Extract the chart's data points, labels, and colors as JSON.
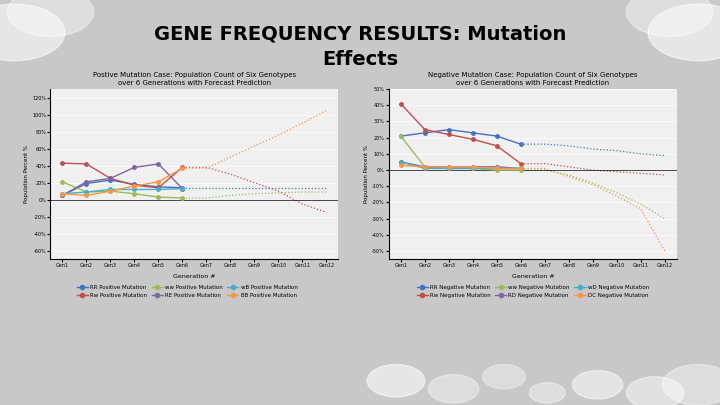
{
  "title": "GENE FREQUENCY RESULTS: Mutation\nEffects",
  "title_fontsize": 14,
  "background_color": "#c8c8c8",
  "title_bg_color": "#ffffff",
  "left_chart": {
    "title": "Postive Mutation Case: Population Count of Six Genotypes\nover 6 Generations with Forecast Prediction",
    "xlabel": "Generation #",
    "ylabel": "Population Percent %",
    "gens_actual": [
      "Gen1",
      "Gen2",
      "Gen3",
      "Gen4",
      "Gen5",
      "Gen6"
    ],
    "gens_forecast": [
      "Gen7",
      "Gen8",
      "Gen9",
      "Gen10",
      "Gen11",
      "Gen12"
    ],
    "ylim": [
      -0.7,
      1.3
    ],
    "yticks": [
      -0.6,
      -0.4,
      -0.2,
      0.0,
      0.2,
      0.4,
      0.6,
      0.8,
      1.0,
      1.2
    ],
    "ytick_labels": [
      "-60%",
      "-40%",
      "-20%",
      "0%",
      "20%",
      "40%",
      "60%",
      "80%",
      "100%",
      "120%"
    ],
    "series": {
      "RR": {
        "color": "#4472C4",
        "actual": [
          0.05,
          0.19,
          0.23,
          0.18,
          0.15,
          0.14
        ],
        "forecast": [
          0.14,
          0.14,
          0.14,
          0.14,
          0.14,
          0.14
        ]
      },
      "Rw": {
        "color": "#C0504D",
        "actual": [
          0.43,
          0.42,
          0.25,
          0.17,
          0.14,
          0.38
        ],
        "forecast": [
          0.38,
          0.3,
          0.2,
          0.1,
          -0.05,
          -0.15
        ]
      },
      "ww": {
        "color": "#9BBB59",
        "actual": [
          0.21,
          0.09,
          0.1,
          0.07,
          0.03,
          0.02
        ],
        "forecast": [
          0.02,
          0.05,
          0.07,
          0.08,
          0.09,
          0.09
        ]
      },
      "RE": {
        "color": "#8064A2",
        "actual": [
          0.05,
          0.21,
          0.25,
          0.38,
          0.42,
          0.13
        ],
        "forecast": [
          null,
          null,
          null,
          null,
          null,
          null
        ]
      },
      "wB": {
        "color": "#4BACC6",
        "actual": [
          0.07,
          0.09,
          0.12,
          0.12,
          0.12,
          0.13
        ],
        "forecast": [
          null,
          null,
          null,
          null,
          null,
          null
        ]
      },
      "BB": {
        "color": "#F79646",
        "actual": [
          0.07,
          0.05,
          0.1,
          0.16,
          0.21,
          0.37
        ],
        "forecast": [
          0.37,
          0.5,
          0.63,
          0.76,
          0.9,
          1.05
        ]
      }
    },
    "legend": [
      {
        "label": "RR Positive Mutation",
        "color": "#4472C4"
      },
      {
        "label": "Rw Positive Mutation",
        "color": "#C0504D"
      },
      {
        "label": "ww Positive Mutation",
        "color": "#9BBB59"
      },
      {
        "label": "RE Positive Mutation",
        "color": "#8064A2"
      },
      {
        "label": "wB Positive Mutation",
        "color": "#4BACC6"
      },
      {
        "label": "BB Positive Mutation",
        "color": "#F79646"
      }
    ]
  },
  "right_chart": {
    "title": "Negative Mutation Case: Population Count of Six Genotypes\nover 6 Generations with Forecast Prediction",
    "xlabel": "Generation #",
    "ylabel": "Population Percent %",
    "gens_actual": [
      "Gen1",
      "Gen2",
      "Gen3",
      "Gen4",
      "Gen5",
      "Gen6"
    ],
    "gens_forecast": [
      "Gen7",
      "Gen8",
      "Gen9",
      "Gen10",
      "Gen11",
      "Gen12"
    ],
    "ylim": [
      -0.55,
      0.45
    ],
    "yticks": [
      -0.5,
      -0.4,
      -0.3,
      -0.2,
      -0.1,
      0.0,
      0.1,
      0.2,
      0.3,
      0.4,
      0.5
    ],
    "ytick_labels": [
      "-50%",
      "-40%",
      "-30%",
      "-20%",
      "-10%",
      "0%",
      "10%",
      "20%",
      "30%",
      "40%",
      "50%"
    ],
    "series": {
      "RR": {
        "color": "#4472C4",
        "actual": [
          0.21,
          0.23,
          0.25,
          0.23,
          0.21,
          0.16
        ],
        "forecast": [
          0.16,
          0.15,
          0.13,
          0.12,
          0.1,
          0.09
        ]
      },
      "Rw": {
        "color": "#C0504D",
        "actual": [
          0.41,
          0.25,
          0.22,
          0.19,
          0.15,
          0.04
        ],
        "forecast": [
          0.04,
          0.02,
          0.0,
          -0.01,
          -0.02,
          -0.03
        ]
      },
      "ww": {
        "color": "#9BBB59",
        "actual": [
          0.21,
          0.02,
          0.01,
          0.01,
          0.0,
          0.0
        ],
        "forecast": [
          0.0,
          -0.03,
          -0.08,
          -0.14,
          -0.21,
          -0.3
        ]
      },
      "RD": {
        "color": "#8064A2",
        "actual": [
          0.05,
          0.02,
          0.02,
          0.02,
          0.02,
          0.01
        ],
        "forecast": [
          null,
          null,
          null,
          null,
          null,
          null
        ]
      },
      "wD": {
        "color": "#4BACC6",
        "actual": [
          0.05,
          0.01,
          0.01,
          0.01,
          0.01,
          0.01
        ],
        "forecast": [
          null,
          null,
          null,
          null,
          null,
          null
        ]
      },
      "DC": {
        "color": "#F79646",
        "actual": [
          0.03,
          0.02,
          0.02,
          0.02,
          0.01,
          0.01
        ],
        "forecast": [
          0.01,
          -0.04,
          -0.09,
          -0.16,
          -0.24,
          -0.5
        ]
      }
    },
    "legend": [
      {
        "label": "RR Negative Mutation",
        "color": "#4472C4"
      },
      {
        "label": "Rw Negative Mutation",
        "color": "#C0504D"
      },
      {
        "label": "ww Negative Mutation",
        "color": "#9BBB59"
      },
      {
        "label": "RD Negative Mutation",
        "color": "#8064A2"
      },
      {
        "label": "wD Negative Mutation",
        "color": "#4BACC6"
      },
      {
        "label": "DC Negative Mutation",
        "color": "#F79646"
      }
    ]
  }
}
